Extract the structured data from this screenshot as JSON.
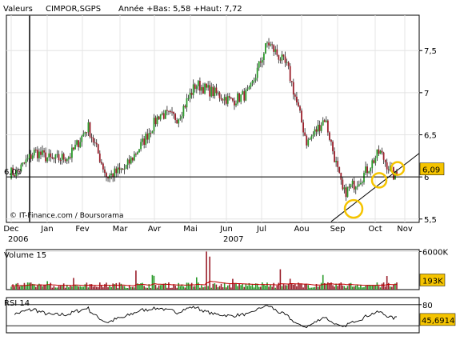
{
  "header": {
    "valeurs_label": "Valeurs",
    "ticker": "CIMPOR,SGPS",
    "stats": "Année +Bas: 5,58 +Haut: 7,72"
  },
  "credit": "© IT-Finance.com / Boursorama",
  "chart_data": [
    {
      "type": "candlestick",
      "title": "CIMPOR,SGPS",
      "x_ticks": [
        "Dec",
        "Jan",
        "Fev",
        "Mar",
        "Avr",
        "Mai",
        "Jun",
        "Jul",
        "Aou",
        "Sep",
        "Oct",
        "Nov"
      ],
      "x_year_labels": [
        {
          "label": "2006",
          "at": "Dec"
        },
        {
          "label": "2007",
          "at": "Jun"
        }
      ],
      "y_ticks": [
        "5,5",
        "6",
        "6,5",
        "7",
        "7,5"
      ],
      "y_tick_values": [
        5.5,
        6.0,
        6.5,
        7.0,
        7.5
      ],
      "ylim": [
        5.46,
        7.92
      ],
      "annual_low": 5.58,
      "annual_high": 7.72,
      "support_level": 6.0,
      "support_label": "6,00",
      "last_value": 6.09,
      "last_value_label": "6,09",
      "trendline": {
        "from": [
          "Sep",
          5.47
        ],
        "to": [
          "Nov",
          6.28
        ]
      },
      "highlighted_points": [
        {
          "month": "Sep",
          "value": 5.62
        },
        {
          "month": "Oct",
          "value": 5.96
        },
        {
          "month": "Nov",
          "value": 6.1
        }
      ],
      "colors": {
        "up": "#2a9a2a",
        "down": "#9a1f2b",
        "highlight": "#f5c400"
      },
      "monthly_path": [
        {
          "month": "Dec",
          "value": 6.05
        },
        {
          "month": "Dec",
          "value": 6.3
        },
        {
          "month": "Jan",
          "value": 6.2
        },
        {
          "month": "Jan",
          "value": 6.25
        },
        {
          "month": "Fev",
          "value": 6.6
        },
        {
          "month": "Fev",
          "value": 6.0
        },
        {
          "month": "Mar",
          "value": 6.1
        },
        {
          "month": "Mar",
          "value": 6.4
        },
        {
          "month": "Avr",
          "value": 6.75
        },
        {
          "month": "Avr",
          "value": 6.7
        },
        {
          "month": "Mai",
          "value": 7.1
        },
        {
          "month": "Mai",
          "value": 7.0
        },
        {
          "month": "Jun",
          "value": 6.9
        },
        {
          "month": "Jun",
          "value": 7.0
        },
        {
          "month": "Jul",
          "value": 7.6
        },
        {
          "month": "Jul",
          "value": 7.3
        },
        {
          "month": "Aou",
          "value": 6.4
        },
        {
          "month": "Aou",
          "value": 6.7
        },
        {
          "month": "Sep",
          "value": 5.8
        },
        {
          "month": "Sep",
          "value": 6.0
        },
        {
          "month": "Oct",
          "value": 6.3
        },
        {
          "month": "Oct",
          "value": 6.0
        },
        {
          "month": "Nov",
          "value": 6.1
        }
      ]
    },
    {
      "type": "bar",
      "title": "Volume 15",
      "y_ticks": [
        "6000K"
      ],
      "y_tick_values": [
        6000
      ],
      "unit": "K",
      "last_value": 193,
      "last_value_label": "193K",
      "colors": {
        "up": "#2a9a2a",
        "down": "#9a1f2b",
        "average": "#c00000"
      },
      "peaks": [
        {
          "month": "Mai",
          "value": 6000
        },
        {
          "month": "Mai",
          "value": 5200
        },
        {
          "month": "Jul",
          "value": 3200
        },
        {
          "month": "Mar",
          "value": 3000
        }
      ]
    },
    {
      "type": "line",
      "title": "RSI 14",
      "y_ticks": [
        "80"
      ],
      "y_tick_values": [
        80
      ],
      "guide_levels": [
        20,
        80
      ],
      "last_value": 45.6914,
      "last_value_label": "45,6914"
    }
  ]
}
